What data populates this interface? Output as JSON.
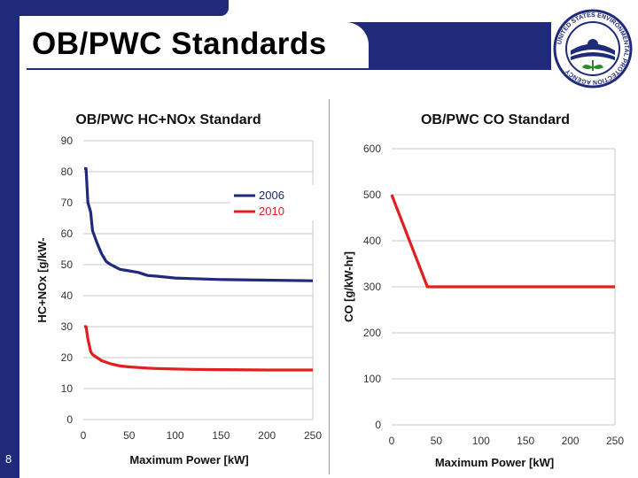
{
  "slide": {
    "title": "OB/PWC Standards",
    "number": "8",
    "logo_text": "UNITED STATES ENVIRONMENTAL PROTECTION AGENCY"
  },
  "colors": {
    "navy": "#1f2a7a",
    "red": "#e0201e",
    "blue_series": "#1f2a7a"
  },
  "chart_data": [
    {
      "type": "line",
      "title": "OB/PWC HC+NOx Standard",
      "xlabel": "Maximum Power [kW]",
      "ylabel": "HC+NOx [g/kW-",
      "xlim": [
        0,
        250
      ],
      "ylim": [
        0,
        90
      ],
      "xticks": [
        "0",
        "50",
        "100",
        "150",
        "200",
        "250"
      ],
      "yticks": [
        "0",
        "10",
        "20",
        "30",
        "40",
        "50",
        "60",
        "70",
        "80",
        "90"
      ],
      "legend": "right-middle",
      "grid": "horizontal",
      "series": [
        {
          "name": "2006",
          "x": [
            1,
            3,
            5,
            8,
            10,
            15,
            20,
            25,
            30,
            40,
            50,
            60,
            70,
            80,
            100,
            120,
            150,
            200,
            250
          ],
          "y": [
            81,
            81,
            70,
            67,
            61,
            57,
            53.5,
            51,
            50,
            48.5,
            48,
            47.5,
            46.5,
            46.3,
            45.7,
            45.5,
            45.2,
            45,
            44.8
          ]
        },
        {
          "name": "2010",
          "x": [
            1,
            3,
            5,
            8,
            10,
            15,
            20,
            25,
            30,
            40,
            50,
            60,
            70,
            80,
            100,
            120,
            150,
            200,
            250
          ],
          "y": [
            30,
            30,
            26,
            22,
            21,
            20,
            19,
            18.5,
            18,
            17.3,
            17,
            16.8,
            16.6,
            16.5,
            16.3,
            16.2,
            16.1,
            16,
            16
          ]
        }
      ]
    },
    {
      "type": "line",
      "title": "OB/PWC CO Standard",
      "xlabel": "Maximum Power [kW]",
      "ylabel": "CO [g/kW-hr]",
      "xlim": [
        0,
        250
      ],
      "ylim": [
        0,
        600
      ],
      "xticks": [
        "0",
        "50",
        "100",
        "150",
        "200",
        "250"
      ],
      "yticks": [
        "0",
        "100",
        "200",
        "300",
        "400",
        "500",
        "600"
      ],
      "grid": "horizontal",
      "series": [
        {
          "x": [
            0,
            40,
            250
          ],
          "y": [
            500,
            300,
            300
          ]
        }
      ]
    }
  ]
}
